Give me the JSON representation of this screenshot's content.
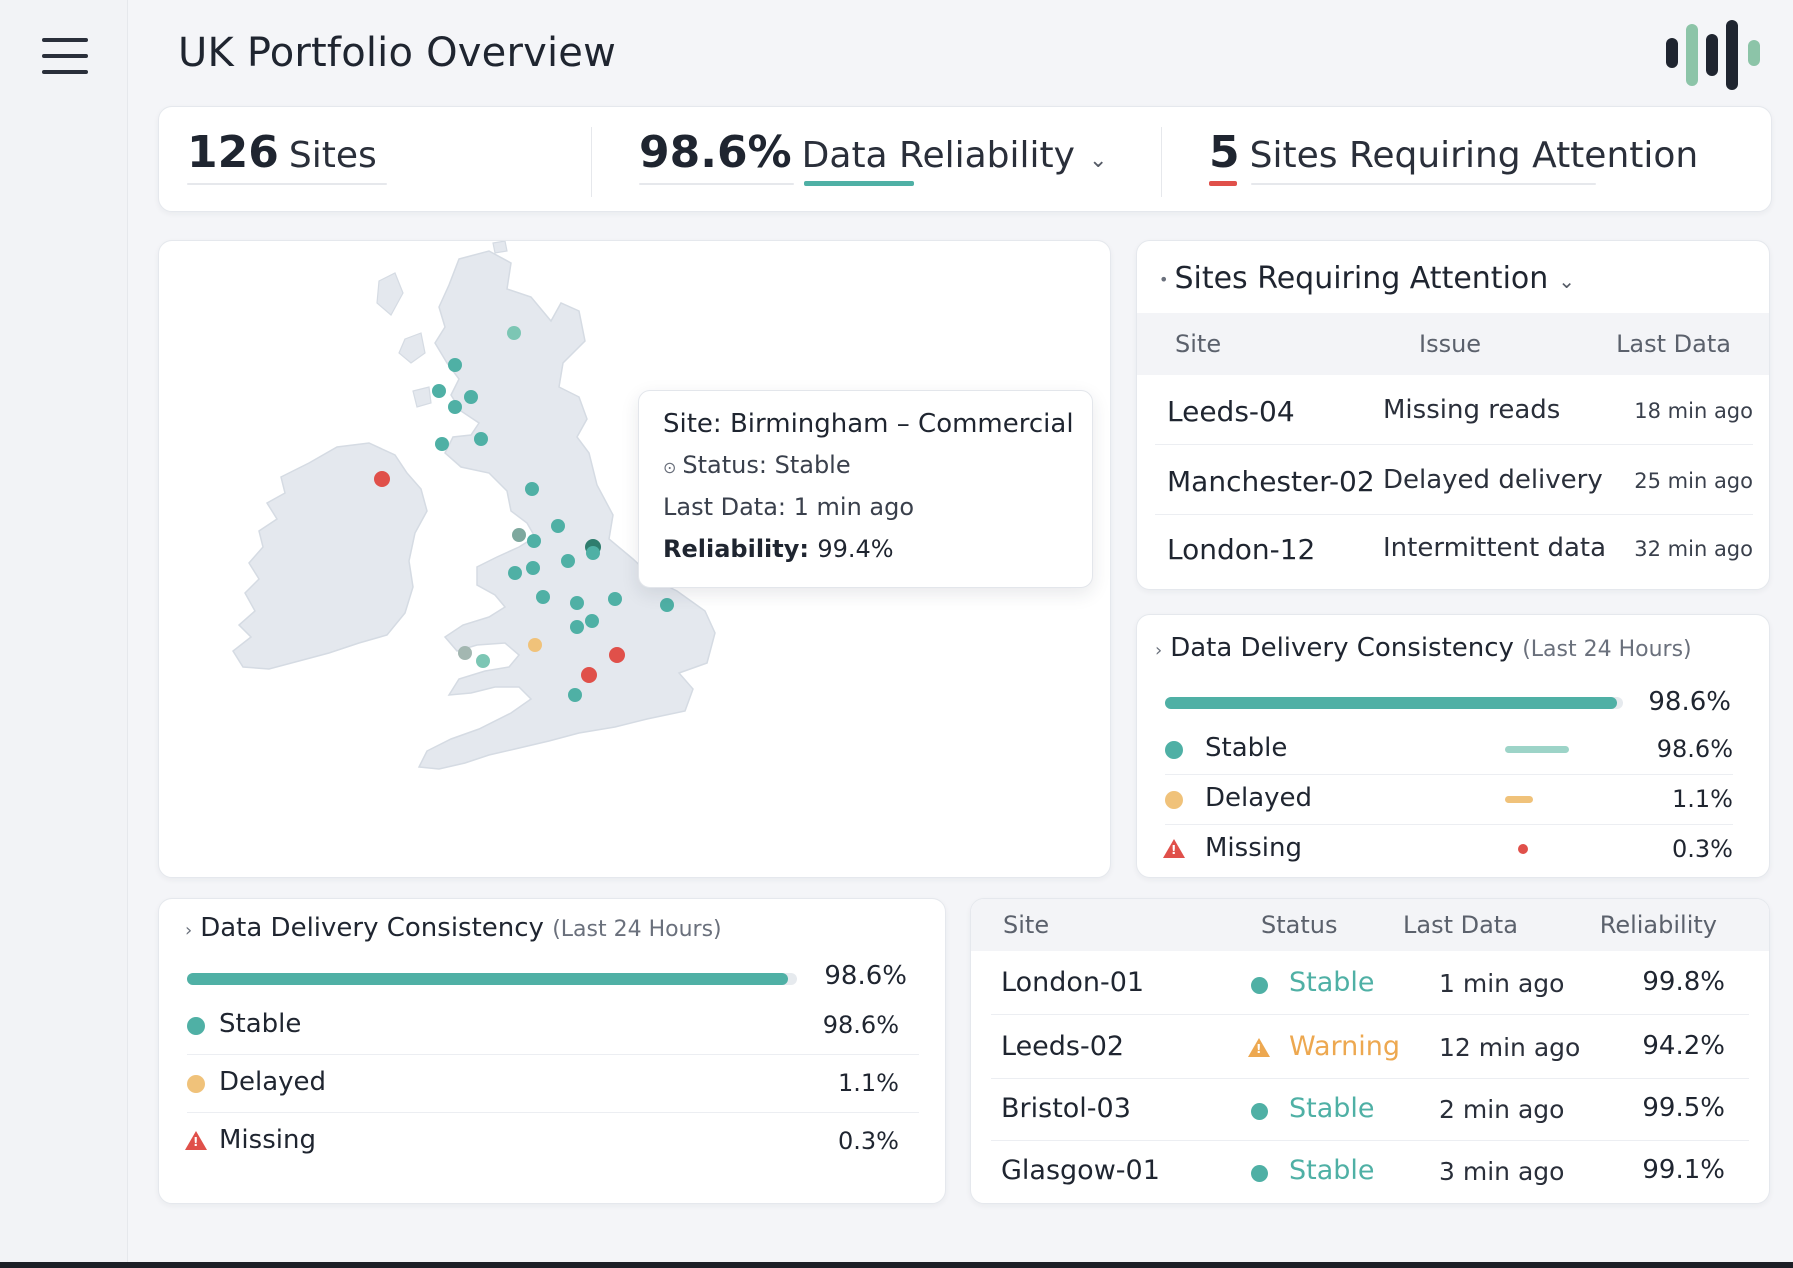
{
  "header": {
    "title": "UK Portfolio Overview",
    "logo_icon": "waveform-bars-icon"
  },
  "kpis": {
    "sites": {
      "value": "126",
      "label": "Sites"
    },
    "reliability": {
      "value": "98.6%",
      "label": "Data Reliability"
    },
    "attention": {
      "value": "5",
      "label": "Sites Requiring Attention"
    }
  },
  "map": {
    "tooltip": {
      "site": "Site: Birmingham – Commercial",
      "status": "Status: Stable",
      "last_data": "Last Data: 1 min ago",
      "reliability_label": "Reliability:",
      "reliability_value": "99.4%"
    }
  },
  "attention_panel": {
    "title": "Sites Requiring Attention",
    "columns": [
      "Site",
      "Issue",
      "Last Data"
    ],
    "rows": [
      {
        "site": "Leeds-04",
        "issue": "Missing reads",
        "last": "18 min ago"
      },
      {
        "site": "Manchester-02",
        "issue": "Delayed delivery",
        "last": "25 min ago"
      },
      {
        "site": "London-12",
        "issue": "Intermittent data",
        "last": "32 min ago"
      }
    ]
  },
  "consistency": {
    "title": "Data Delivery Consistency",
    "subtitle": "(Last 24 Hours)",
    "overall": "98.6%",
    "overall_fraction": 0.986,
    "items": [
      {
        "name": "Stable",
        "pct": "98.6%",
        "color": "#4fb0a5"
      },
      {
        "name": "Delayed",
        "pct": "1.1%",
        "color": "#f0c27a"
      },
      {
        "name": "Missing",
        "pct": "0.3%",
        "color": "#e0504a"
      }
    ]
  },
  "sites_table": {
    "columns": [
      "Site",
      "Status",
      "Last Data",
      "Reliability"
    ],
    "rows": [
      {
        "site": "London-01",
        "status": "Stable",
        "last": "1 min ago",
        "rel": "99.8%"
      },
      {
        "site": "Leeds-02",
        "status": "Warning",
        "last": "12 min ago",
        "rel": "94.2%"
      },
      {
        "site": "Bristol-03",
        "status": "Stable",
        "last": "2 min ago",
        "rel": "99.5%"
      },
      {
        "site": "Glasgow-01",
        "status": "Stable",
        "last": "3 min ago",
        "rel": "99.1%"
      }
    ]
  },
  "colors": {
    "accent_teal": "#4fb0a5",
    "warning": "#eda850",
    "alert": "#e0504a"
  }
}
